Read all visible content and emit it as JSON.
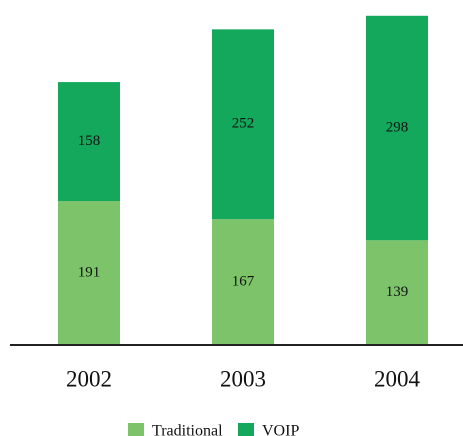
{
  "chart_data": {
    "type": "stacked_bar",
    "categories": [
      "2002",
      "2003",
      "2004"
    ],
    "series": [
      {
        "name": "Traditional",
        "color": "#7dc36a",
        "values": [
          191,
          167,
          139
        ]
      },
      {
        "name": "VOIP",
        "color": "#13a85b",
        "values": [
          158,
          252,
          298
        ]
      }
    ],
    "ylim": [
      0,
      450
    ]
  }
}
